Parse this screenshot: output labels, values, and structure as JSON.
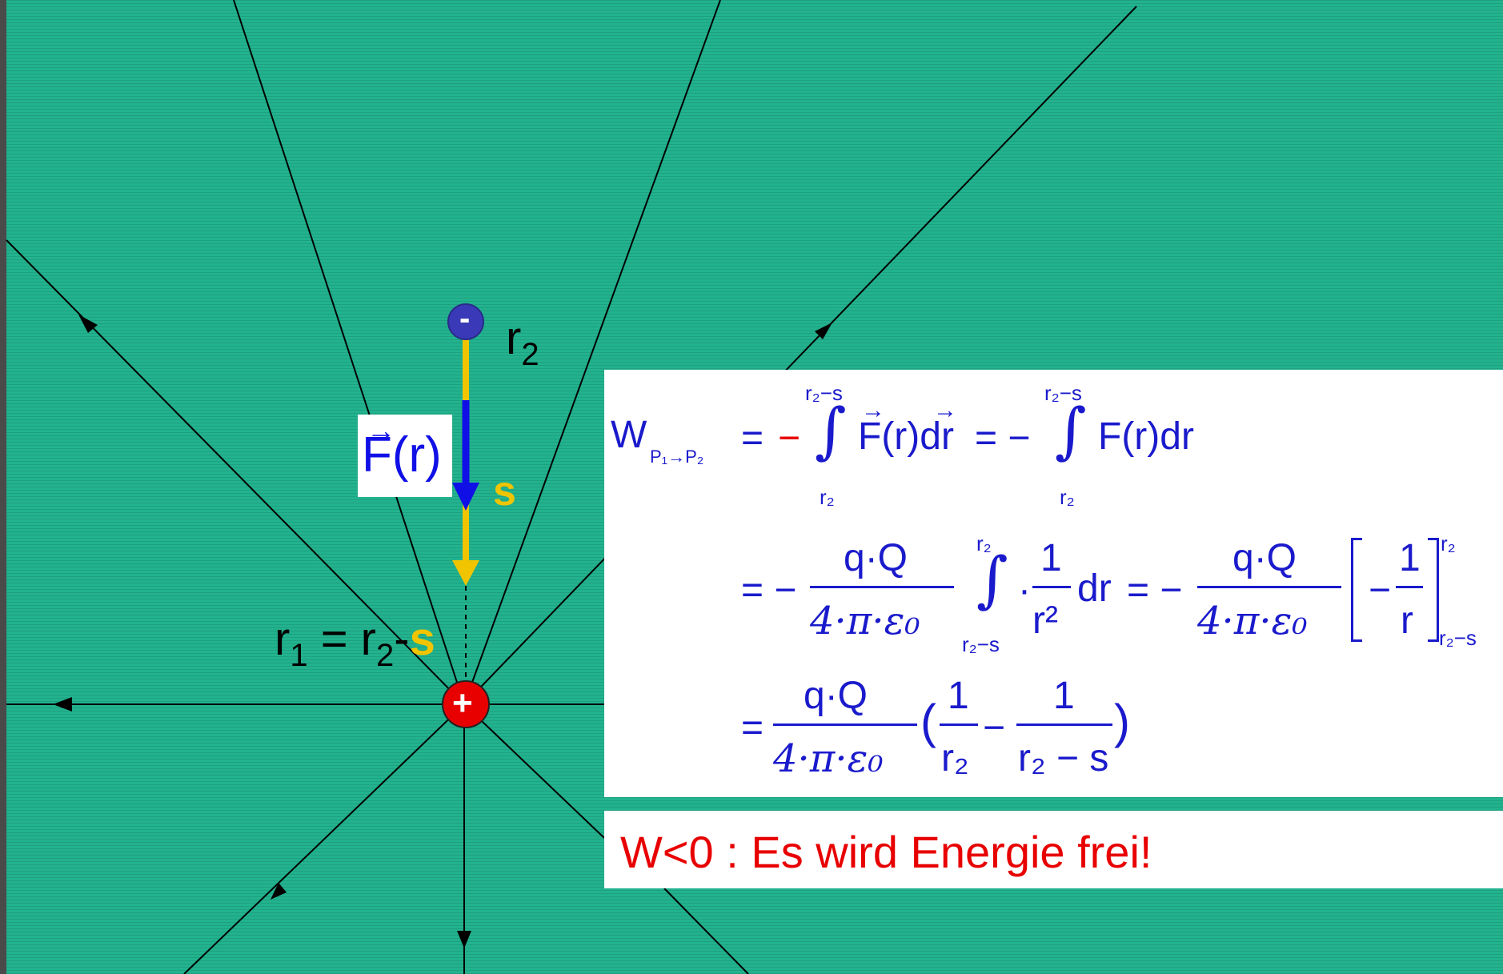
{
  "labels": {
    "r2": "r",
    "r2_sub": "2",
    "s": "s",
    "r1_eq_r": "r",
    "r1_sub": "1",
    "r1_eq_mid": " = r",
    "r1_eq_sub2": "2",
    "r1_eq_dash": "-",
    "r1_eq_s": "s",
    "force": "F(r)",
    "force_arrow": "→",
    "minus_charge": "-",
    "plus_charge": "+"
  },
  "formula": {
    "W": "W",
    "W_sub": "P₁→P₂",
    "eq1": "=",
    "minus_red": "−",
    "int_upper": "r₂−s",
    "int_lower": "r₂",
    "integrand1": "F(r)dr",
    "vec1": "→",
    "vec2": "→",
    "eq2": "= −",
    "integrand2": "F(r)dr",
    "row2_eq": "= −",
    "qQ": "q·Q",
    "den": "4·π·ε₀",
    "int2_upper": "r₂",
    "int2_lower": "r₂−s",
    "dot": "·",
    "one": "1",
    "r_sq": "r²",
    "dr": "dr",
    "eq_minus": "= −",
    "bracket_inner_minus": "−",
    "r": "r",
    "bracket_upper": "r₂",
    "bracket_lower": "r₂−s",
    "row3_eq": "=",
    "paren_open": "(",
    "paren_close": ")",
    "r2_den": "r₂",
    "r2_minus_s": "r₂ − s",
    "minus": "−"
  },
  "result": "W<0 : Es wird Energie frei!",
  "colors": {
    "background": "#22b28e",
    "formula_text": "#1a1acc",
    "result_text": "#e80000",
    "force_arrow": "#1010e6",
    "displacement": "#f1c400",
    "positive_charge": "#e80000",
    "negative_charge": "#3a3ab8"
  }
}
